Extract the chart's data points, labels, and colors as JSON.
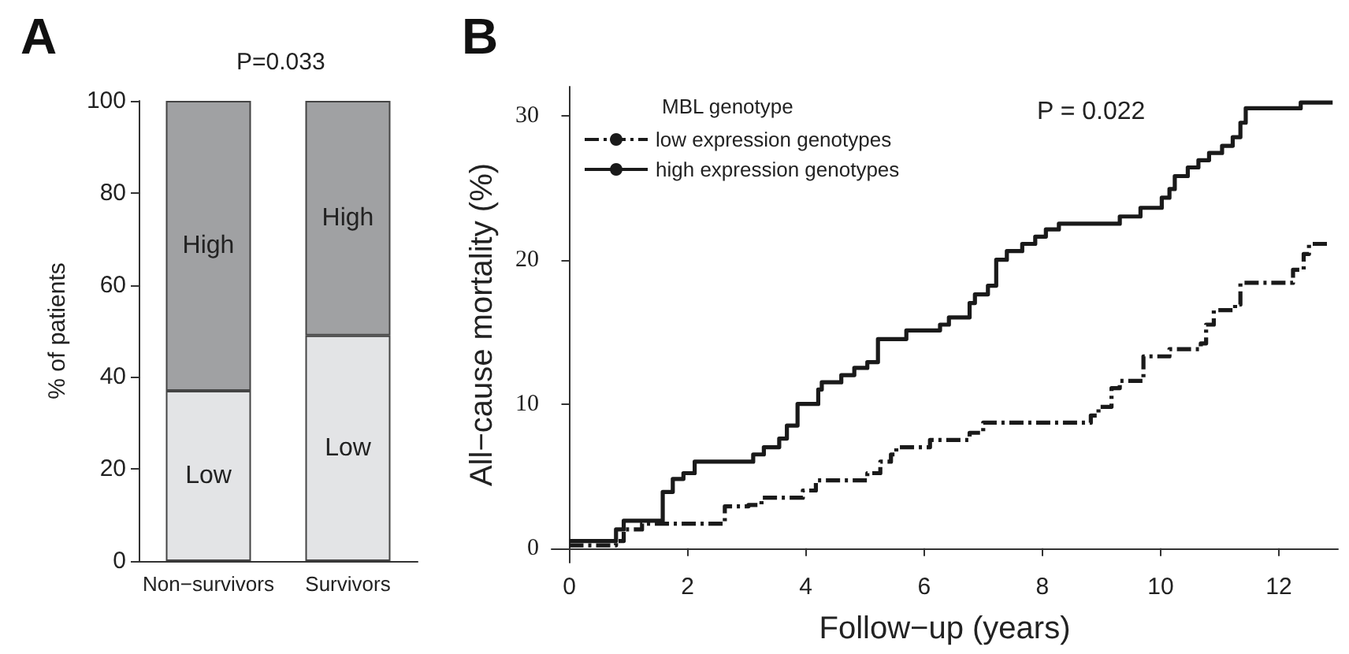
{
  "chart_data": [
    {
      "type": "bar",
      "title": "A",
      "annotations": [
        "P=0.033"
      ],
      "ylabel": "% of patients",
      "categories": [
        "Non−survivors",
        "Survivors"
      ],
      "stacked": true,
      "legend": false,
      "grid": false,
      "series": [
        {
          "name": "Low",
          "color": "#e3e4e6",
          "values": [
            37,
            49
          ]
        },
        {
          "name": "High",
          "color": "#a0a1a3",
          "values": [
            63,
            51
          ]
        }
      ],
      "ylim": [
        0,
        100
      ],
      "yticks": [
        0,
        20,
        40,
        60,
        80,
        100
      ]
    },
    {
      "type": "step",
      "title": "B",
      "annotations": [
        "P = 0.022"
      ],
      "xlabel": "Follow−up (years)",
      "ylabel": "All−cause mortality (%)",
      "legend_title": "MBL genotype",
      "legend": "top left",
      "grid": false,
      "marker": "none",
      "series": [
        {
          "name": "low expression genotypes",
          "color": "#1a1a1a",
          "line_style": "dashed",
          "x": [
            0,
            0.79,
            0.92,
            1.23,
            2.63,
            3.03,
            3.25,
            3.95,
            4.17,
            5.04,
            5.26,
            5.44,
            5.53,
            6.1,
            6.77,
            7.0,
            8.82,
            8.95,
            9.17,
            9.31,
            9.71,
            10.15,
            10.68,
            10.77,
            10.9,
            11.26,
            11.35,
            12.24,
            12.42,
            12.51,
            12.82
          ],
          "values": [
            0.2,
            0.5,
            1.3,
            1.7,
            2.9,
            3.0,
            3.5,
            4.0,
            4.7,
            5.2,
            6.0,
            6.5,
            7.0,
            7.5,
            8.0,
            8.7,
            9.2,
            9.8,
            11.1,
            11.6,
            13.3,
            13.8,
            14.2,
            15.5,
            16.5,
            16.9,
            18.4,
            19.3,
            20.4,
            21.1,
            21.1
          ]
        },
        {
          "name": "high expression genotypes",
          "color": "#1a1a1a",
          "line_style": "solid",
          "x": [
            0,
            0.79,
            0.92,
            1.58,
            1.75,
            1.93,
            2.12,
            3.11,
            3.29,
            3.55,
            3.68,
            3.86,
            4.21,
            4.27,
            4.6,
            4.82,
            5.04,
            5.22,
            5.7,
            6.27,
            6.42,
            6.77,
            6.86,
            7.08,
            7.22,
            7.4,
            7.66,
            7.88,
            8.06,
            8.28,
            9.31,
            9.66,
            10.02,
            10.15,
            10.24,
            10.46,
            10.64,
            10.82,
            11.04,
            11.22,
            11.35,
            11.44,
            12.37,
            12.91
          ],
          "values": [
            0.5,
            1.3,
            1.9,
            3.9,
            4.8,
            5.2,
            6.0,
            6.5,
            7.0,
            7.6,
            8.5,
            10.0,
            11.0,
            11.5,
            12.0,
            12.5,
            12.9,
            14.5,
            15.1,
            15.5,
            16.0,
            17.0,
            17.6,
            18.2,
            20.0,
            20.6,
            21.1,
            21.6,
            22.1,
            22.5,
            23.0,
            23.6,
            24.3,
            24.9,
            25.8,
            26.4,
            26.9,
            27.4,
            27.9,
            28.5,
            29.5,
            30.5,
            30.9,
            30.9
          ]
        }
      ],
      "xlim": [
        -0.3,
        13
      ],
      "xticks": [
        0,
        2,
        4,
        6,
        8,
        10,
        12
      ],
      "ylim": [
        -1,
        32
      ],
      "yticks": [
        0,
        10,
        20,
        30
      ]
    }
  ]
}
